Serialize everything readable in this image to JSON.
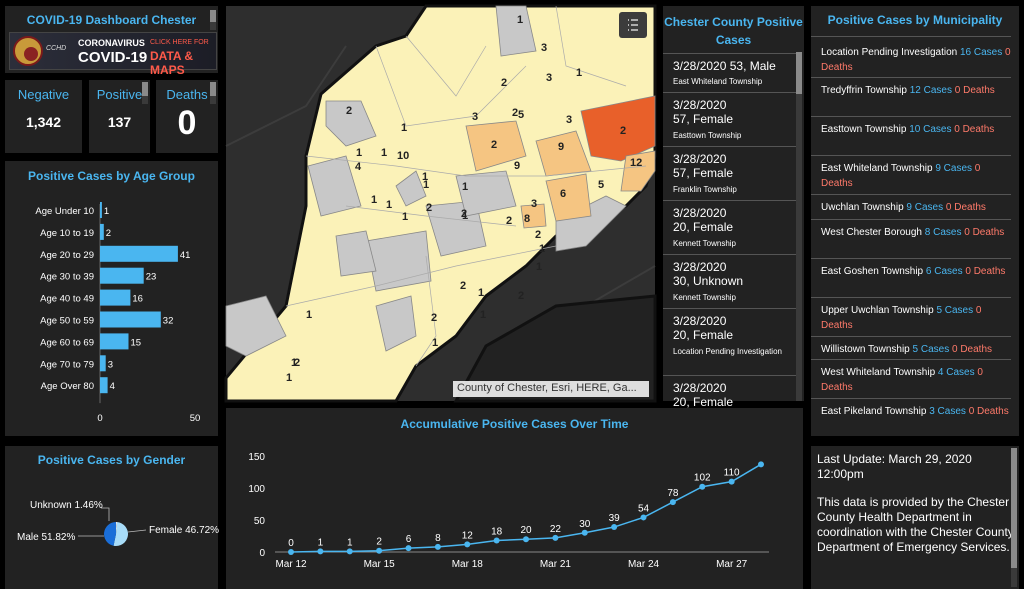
{
  "header": {
    "title": "COVID-19 Dashboard Chester",
    "banner_org": "CCHD",
    "banner_line1": "CORONAVIRUS",
    "banner_line2": "COVID-19",
    "banner_cta1": "CLICK HERE FOR",
    "banner_cta2": "DATA & MAPS"
  },
  "stats": {
    "negative": {
      "label": "Negative",
      "value": "1,342"
    },
    "positive": {
      "label": "Positive",
      "value": "137"
    },
    "deaths": {
      "label": "Deaths",
      "value": "0"
    }
  },
  "age_chart": {
    "title": "Positive Cases by Age Group",
    "bar_color": "#4ab6f0",
    "chart_data": {
      "type": "bar",
      "categories": [
        "Age Under 10",
        "Age 10 to 19",
        "Age 20 to 29",
        "Age 30 to 39",
        "Age 40 to 49",
        "Age 50 to 59",
        "Age 60 to 69",
        "Age 70 to 79",
        "Age Over 80"
      ],
      "values": [
        1,
        2,
        41,
        23,
        16,
        32,
        15,
        3,
        4
      ],
      "xlim": [
        0,
        50
      ],
      "xticks": [
        "0",
        "50"
      ],
      "orientation": "horizontal"
    }
  },
  "gender_chart": {
    "title": "Positive Cases by Gender",
    "chart_data": {
      "type": "pie",
      "labels": [
        "Unknown 1.46%",
        "Male 51.82%",
        "Female 46.72%"
      ],
      "values": [
        1.46,
        51.82,
        46.72
      ],
      "colors": [
        "#e8e8e8",
        "#a8dcf8",
        "#1a6ed8"
      ]
    }
  },
  "map": {
    "attribution": "County of Chester, Esri, HERE, Ga...",
    "labels": [
      "1",
      "3",
      "3",
      "1",
      "2",
      "2",
      "3",
      "5",
      "3",
      "2",
      "2",
      "9",
      "12",
      "9",
      "10",
      "4",
      "1",
      "1",
      "2",
      "1",
      "6",
      "5",
      "1",
      "1",
      "2",
      "3",
      "8",
      "1",
      "1",
      "2",
      "2",
      "1",
      "1",
      "2",
      "2",
      "1",
      "2",
      "1",
      "1",
      "2",
      "1",
      "2",
      "1",
      "1",
      "1",
      "1",
      "1"
    ],
    "highlight_colors": {
      "low": "#fbf2b8",
      "mid": "#f5c582",
      "high": "#f08a4b",
      "max": "#e8602a"
    }
  },
  "county_list": {
    "title": "Chester County Positive Cases",
    "items": [
      {
        "date": "3/28/2020",
        "line": "53, Male",
        "place": "East Whiteland Township"
      },
      {
        "date": "3/28/2020",
        "line": "57, Female",
        "place": "Easttown Township"
      },
      {
        "date": "3/28/2020",
        "line": "57, Female",
        "place": "Franklin Township"
      },
      {
        "date": "3/28/2020",
        "line": "20, Female",
        "place": "Kennett Township"
      },
      {
        "date": "3/28/2020",
        "line": "30, Unknown",
        "place": "Kennett Township"
      },
      {
        "date": "3/28/2020",
        "line": "20, Female",
        "place": "Location Pending Investigation"
      },
      {
        "date": "3/28/2020",
        "line": "20, Female",
        "place": ""
      }
    ]
  },
  "municipality": {
    "title": "Positive Cases by Municipality",
    "items": [
      {
        "name": "Location Pending Investigation",
        "cases": "16 Cases",
        "deaths": "0 Deaths"
      },
      {
        "name": "Tredyffrin Township",
        "cases": "12 Cases",
        "deaths": "0 Deaths"
      },
      {
        "name": "Easttown Township",
        "cases": "10 Cases",
        "deaths": "0 Deaths"
      },
      {
        "name": "East Whiteland Township",
        "cases": "9 Cases",
        "deaths": "0 Deaths"
      },
      {
        "name": "Uwchlan Township",
        "cases": "9 Cases",
        "deaths": "0 Deaths"
      },
      {
        "name": "West Chester Borough",
        "cases": "8 Cases",
        "deaths": "0 Deaths"
      },
      {
        "name": "East Goshen Township",
        "cases": "6 Cases",
        "deaths": "0 Deaths"
      },
      {
        "name": "Upper Uwchlan Township",
        "cases": "5 Cases",
        "deaths": "0 Deaths"
      },
      {
        "name": "Willistown Township",
        "cases": "5 Cases",
        "deaths": "0 Deaths"
      },
      {
        "name": "West Whiteland Township",
        "cases": "4 Cases",
        "deaths": "0 Deaths"
      },
      {
        "name": "East Pikeland Township",
        "cases": "3 Cases",
        "deaths": "0 Deaths"
      }
    ]
  },
  "accum_chart": {
    "title": "Accumulative Positive Cases Over Time",
    "line_color": "#4ab6f0",
    "chart_data": {
      "type": "line",
      "x": [
        "Mar 12",
        "Mar 13",
        "Mar 14",
        "Mar 15",
        "Mar 16",
        "Mar 17",
        "Mar 18",
        "Mar 19",
        "Mar 20",
        "Mar 21",
        "Mar 22",
        "Mar 23",
        "Mar 24",
        "Mar 25",
        "Mar 26",
        "Mar 27",
        "Mar 28"
      ],
      "values": [
        0,
        1,
        1,
        2,
        6,
        8,
        12,
        18,
        20,
        22,
        30,
        39,
        54,
        78,
        102,
        110,
        137
      ],
      "data_labels": [
        "0",
        "1",
        "1",
        "2",
        "6",
        "8",
        "12",
        "18",
        "20",
        "22",
        "30",
        "39",
        "54",
        "78",
        "102",
        "110",
        ""
      ],
      "xticks": [
        "Mar 12",
        "Mar 15",
        "Mar 18",
        "Mar 21",
        "Mar 24",
        "Mar 27"
      ],
      "yticks": [
        "0",
        "50",
        "100",
        "150"
      ],
      "ylim": [
        0,
        150
      ]
    }
  },
  "update": {
    "last_update": "Last Update: March 29, 2020 12:00pm",
    "body": "This data is provided by the Chester County Health Department in coordination with the Chester County Department of Emergency Services."
  }
}
